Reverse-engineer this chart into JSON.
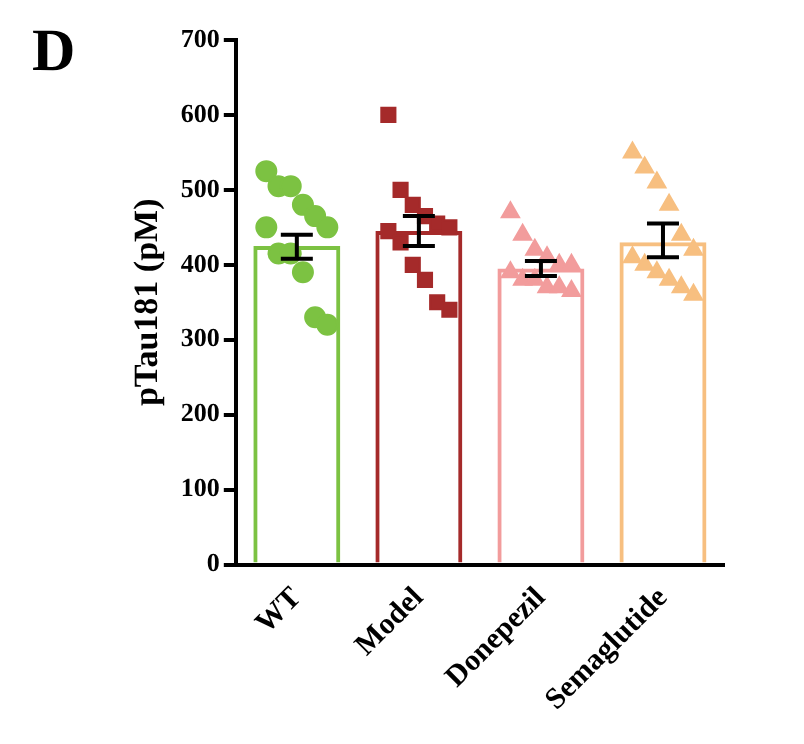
{
  "chart_data": {
    "type": "bar",
    "title": "D",
    "ylabel": "pTau181 (pM)",
    "categories": [
      "WT",
      "Model",
      "Donepezil",
      "Semaglutide"
    ],
    "ylim": [
      0,
      700
    ],
    "yticks": [
      0,
      100,
      200,
      300,
      400,
      500,
      600,
      700
    ],
    "grid": false,
    "legend": false,
    "series": [
      {
        "type": "bar",
        "values": [
          425,
          445,
          395,
          430
        ],
        "colors": [
          "#7cc242",
          "#a52a2a",
          "#f29c9c",
          "#f7bf80"
        ],
        "errors": [
          [
            408,
            440
          ],
          [
            425,
            465
          ],
          [
            385,
            405
          ],
          [
            410,
            455
          ]
        ]
      },
      {
        "type": "scatter",
        "marker": "circle",
        "color": "#7cc242",
        "x": [
          "WT",
          "WT",
          "WT",
          "WT",
          "WT",
          "WT",
          "WT",
          "WT",
          "WT",
          "WT",
          "WT",
          "WT"
        ],
        "values": [
          525,
          505,
          505,
          480,
          465,
          450,
          450,
          415,
          415,
          390,
          330,
          320
        ]
      },
      {
        "type": "scatter",
        "marker": "square",
        "color": "#a52a2a",
        "x": [
          "Model",
          "Model",
          "Model",
          "Model",
          "Model",
          "Model",
          "Model",
          "Model",
          "Model",
          "Model",
          "Model",
          "Model"
        ],
        "values": [
          600,
          500,
          480,
          465,
          455,
          450,
          445,
          430,
          400,
          380,
          350,
          340
        ]
      },
      {
        "type": "scatter",
        "marker": "triangle",
        "color": "#f29c9c",
        "x": [
          "Donepezil",
          "Donepezil",
          "Donepezil",
          "Donepezil",
          "Donepezil",
          "Donepezil",
          "Donepezil",
          "Donepezil",
          "Donepezil",
          "Donepezil",
          "Donepezil",
          "Donepezil"
        ],
        "values": [
          470,
          440,
          420,
          410,
          400,
          400,
          390,
          380,
          380,
          370,
          370,
          365
        ]
      },
      {
        "type": "scatter",
        "marker": "triangle",
        "color": "#f7bf80",
        "x": [
          "Semaglutide",
          "Semaglutide",
          "Semaglutide",
          "Semaglutide",
          "Semaglutide",
          "Semaglutide",
          "Semaglutide",
          "Semaglutide",
          "Semaglutide",
          "Semaglutide",
          "Semaglutide",
          "Semaglutide"
        ],
        "values": [
          550,
          530,
          510,
          480,
          440,
          420,
          410,
          400,
          390,
          380,
          370,
          360
        ]
      }
    ]
  }
}
